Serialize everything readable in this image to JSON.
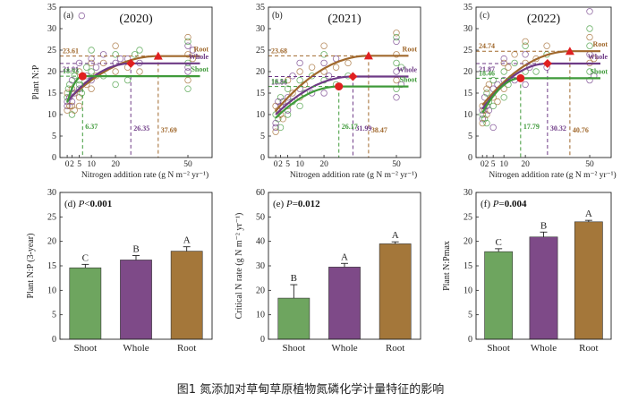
{
  "caption": "图1 氮添加对草甸草原植物氮磷化学计量特征的影响",
  "colors": {
    "root": "#a0682c",
    "whole": "#6e3a86",
    "shoot": "#3f9a3a",
    "marker": "#e02020",
    "bar_shoot": "#6ea55f",
    "bar_whole": "#7e4a88",
    "bar_root": "#a4773a"
  },
  "chart_data": [
    {
      "type": "scatter",
      "panel": "(a)",
      "title": "(2020)",
      "ylabel": "Plant N:P",
      "xlabel": "Nitrogen addition rate (g N m⁻² yr⁻¹)",
      "xticks": [
        0,
        2,
        5,
        10,
        20,
        50
      ],
      "xtick_labels": [
        "0",
        "2",
        "5",
        "10",
        "20",
        "50"
      ],
      "xlim": [
        -3,
        60
      ],
      "yticks": [
        0,
        5,
        10,
        15,
        20,
        25,
        30,
        35
      ],
      "ylim": [
        0,
        35
      ],
      "series": [
        {
          "name": "Root",
          "start": 13.2,
          "plateau": 23.61,
          "xcrit": 37.69,
          "plateau_label": "23.61",
          "xcrit_label": "37.69"
        },
        {
          "name": "Whole",
          "start": 13.0,
          "plateau": 21.91,
          "xcrit": 26.35,
          "plateau_label": "21.91",
          "xcrit_label": "26.35"
        },
        {
          "name": "Shoot",
          "start": 12.8,
          "plateau": 18.93,
          "xcrit": 6.37,
          "plateau_label": "18.93",
          "xcrit_label": "6.37"
        }
      ],
      "scatter_points": [
        [
          0,
          11
        ],
        [
          0,
          13
        ],
        [
          0,
          14
        ],
        [
          0,
          15
        ],
        [
          0,
          12
        ],
        [
          0.5,
          16
        ],
        [
          1,
          12
        ],
        [
          1,
          14
        ],
        [
          1,
          17
        ],
        [
          2,
          12
        ],
        [
          2,
          13
        ],
        [
          2,
          15
        ],
        [
          2,
          16
        ],
        [
          2,
          18
        ],
        [
          2,
          10
        ],
        [
          3,
          11
        ],
        [
          3,
          15
        ],
        [
          3,
          19
        ],
        [
          5,
          14
        ],
        [
          5,
          16
        ],
        [
          5,
          18
        ],
        [
          5,
          20
        ],
        [
          5,
          22
        ],
        [
          5,
          17
        ],
        [
          5,
          12
        ],
        [
          6,
          33
        ],
        [
          6,
          15
        ],
        [
          8,
          17
        ],
        [
          8,
          19
        ],
        [
          8,
          21
        ],
        [
          10,
          16
        ],
        [
          10,
          18
        ],
        [
          10,
          20
        ],
        [
          10,
          22
        ],
        [
          10,
          23
        ],
        [
          10,
          25
        ],
        [
          12,
          19
        ],
        [
          12,
          21
        ],
        [
          15,
          19
        ],
        [
          15,
          22
        ],
        [
          15,
          24
        ],
        [
          20,
          17
        ],
        [
          20,
          20
        ],
        [
          20,
          22
        ],
        [
          20,
          24
        ],
        [
          20,
          26
        ],
        [
          22,
          23
        ],
        [
          25,
          18
        ],
        [
          25,
          21
        ],
        [
          25,
          23
        ],
        [
          28,
          24
        ],
        [
          30,
          20
        ],
        [
          30,
          22
        ],
        [
          30,
          25
        ],
        [
          50,
          18
        ],
        [
          50,
          20
        ],
        [
          50,
          22
        ],
        [
          50,
          24
        ],
        [
          50,
          26
        ],
        [
          50,
          27
        ],
        [
          50,
          28
        ],
        [
          50,
          21
        ],
        [
          50,
          16
        ],
        [
          52,
          23
        ],
        [
          52,
          25
        ]
      ]
    },
    {
      "type": "scatter",
      "panel": "(b)",
      "title": "(2021)",
      "ylabel": "",
      "xlabel": "Nitrogen addition rate (g N m⁻² yr⁻¹)",
      "xticks": [
        0,
        2,
        5,
        10,
        20,
        50
      ],
      "xtick_labels": [
        "0",
        "2",
        "5",
        "10",
        "20",
        "50"
      ],
      "xlim": [
        -3,
        60
      ],
      "yticks": [
        0,
        5,
        10,
        15,
        20,
        25,
        30,
        35
      ],
      "ylim": [
        0,
        35
      ],
      "series": [
        {
          "name": "Root",
          "start": 10.8,
          "plateau": 23.68,
          "xcrit": 38.47,
          "plateau_label": "23.68",
          "xcrit_label": "38.47"
        },
        {
          "name": "Whole",
          "start": 10.0,
          "plateau": 18.86,
          "xcrit": 31.99,
          "plateau_label": "18.86",
          "xcrit_label": "31.99"
        },
        {
          "name": "Shoot",
          "start": 9.2,
          "plateau": 16.54,
          "xcrit": 26.17,
          "plateau_label": "16.54",
          "xcrit_label": "26.17"
        }
      ],
      "scatter_points": [
        [
          0,
          6
        ],
        [
          0,
          8
        ],
        [
          0,
          10
        ],
        [
          0,
          12
        ],
        [
          0,
          7
        ],
        [
          1,
          9
        ],
        [
          1,
          11
        ],
        [
          1,
          13
        ],
        [
          2,
          7
        ],
        [
          2,
          10
        ],
        [
          2,
          12
        ],
        [
          2,
          14
        ],
        [
          3,
          9
        ],
        [
          3,
          13
        ],
        [
          5,
          10
        ],
        [
          5,
          12
        ],
        [
          5,
          14
        ],
        [
          5,
          16
        ],
        [
          5,
          18
        ],
        [
          5,
          11
        ],
        [
          7,
          13
        ],
        [
          7,
          15
        ],
        [
          7,
          19
        ],
        [
          10,
          12
        ],
        [
          10,
          14
        ],
        [
          10,
          16
        ],
        [
          10,
          18
        ],
        [
          10,
          20
        ],
        [
          10,
          22
        ],
        [
          12,
          15
        ],
        [
          12,
          17
        ],
        [
          15,
          15
        ],
        [
          15,
          19
        ],
        [
          15,
          21
        ],
        [
          20,
          15
        ],
        [
          20,
          18
        ],
        [
          20,
          20
        ],
        [
          20,
          22
        ],
        [
          20,
          24
        ],
        [
          20,
          26
        ],
        [
          22,
          19
        ],
        [
          25,
          17
        ],
        [
          25,
          21
        ],
        [
          25,
          23
        ],
        [
          30,
          19
        ],
        [
          30,
          22
        ],
        [
          50,
          14
        ],
        [
          50,
          16
        ],
        [
          50,
          18
        ],
        [
          50,
          20
        ],
        [
          50,
          22
        ],
        [
          50,
          24
        ],
        [
          50,
          27
        ],
        [
          50,
          28
        ],
        [
          50,
          29
        ],
        [
          52,
          17
        ],
        [
          52,
          21
        ]
      ]
    },
    {
      "type": "scatter",
      "panel": "(c)",
      "title": "(2022)",
      "ylabel": "",
      "xlabel": "Nitrogen addition rate (g N m⁻² yr⁻¹)",
      "xticks": [
        0,
        2,
        5,
        10,
        20,
        50
      ],
      "xtick_labels": [
        "0",
        "2",
        "5",
        "10",
        "20",
        "50"
      ],
      "xlim": [
        -3,
        60
      ],
      "yticks": [
        0,
        5,
        10,
        15,
        20,
        25,
        30,
        35
      ],
      "ylim": [
        0,
        35
      ],
      "series": [
        {
          "name": "Root",
          "start": 12.2,
          "plateau": 24.74,
          "xcrit": 40.76,
          "plateau_label": "24.74",
          "xcrit_label": "40.76"
        },
        {
          "name": "Whole",
          "start": 11.3,
          "plateau": 21.87,
          "xcrit": 30.32,
          "plateau_label": "21.87",
          "xcrit_label": "30.32"
        },
        {
          "name": "Shoot",
          "start": 10.4,
          "plateau": 18.46,
          "xcrit": 17.79,
          "plateau_label": "18.46",
          "xcrit_label": "17.79"
        }
      ],
      "scatter_points": [
        [
          0,
          8
        ],
        [
          0,
          9
        ],
        [
          0,
          10
        ],
        [
          0,
          12
        ],
        [
          0,
          11
        ],
        [
          1,
          9
        ],
        [
          1,
          11
        ],
        [
          1,
          14
        ],
        [
          2,
          8
        ],
        [
          2,
          10
        ],
        [
          2,
          12
        ],
        [
          2,
          15
        ],
        [
          2,
          16
        ],
        [
          3,
          11
        ],
        [
          3,
          13
        ],
        [
          3,
          17
        ],
        [
          5,
          7
        ],
        [
          5,
          12
        ],
        [
          5,
          14
        ],
        [
          5,
          16
        ],
        [
          5,
          18
        ],
        [
          7,
          13
        ],
        [
          7,
          17
        ],
        [
          10,
          14
        ],
        [
          10,
          16
        ],
        [
          10,
          18
        ],
        [
          10,
          20
        ],
        [
          10,
          22
        ],
        [
          10,
          23
        ],
        [
          12,
          17
        ],
        [
          12,
          21
        ],
        [
          15,
          18
        ],
        [
          15,
          22
        ],
        [
          15,
          24
        ],
        [
          20,
          17
        ],
        [
          20,
          20
        ],
        [
          20,
          22
        ],
        [
          20,
          24
        ],
        [
          20,
          26
        ],
        [
          20,
          27
        ],
        [
          22,
          21
        ],
        [
          25,
          20
        ],
        [
          25,
          23
        ],
        [
          30,
          21
        ],
        [
          30,
          24
        ],
        [
          30,
          26
        ],
        [
          50,
          18
        ],
        [
          50,
          20
        ],
        [
          50,
          22
        ],
        [
          50,
          24
        ],
        [
          50,
          26
        ],
        [
          50,
          28
        ],
        [
          50,
          34
        ],
        [
          50,
          30
        ],
        [
          52,
          23
        ],
        [
          52,
          19
        ]
      ]
    },
    {
      "type": "bar",
      "panel": "(d)",
      "p_prefix": "P<",
      "p_value": "0.001",
      "ylabel": "Plant N:P (3-year)",
      "categories": [
        "Shoot",
        "Whole",
        "Root"
      ],
      "values": [
        14.6,
        16.2,
        18.0
      ],
      "errors": [
        0.7,
        0.9,
        0.9
      ],
      "letters": [
        "C",
        "B",
        "A"
      ],
      "yticks": [
        0,
        5,
        10,
        15,
        20,
        25,
        30
      ],
      "ylim": [
        0,
        30
      ]
    },
    {
      "type": "bar",
      "panel": "(e)",
      "p_prefix": "P=",
      "p_value": "0.012",
      "ylabel": "Critical N rate (g N m⁻² yr⁻¹)",
      "categories": [
        "Shoot",
        "Whole",
        "Root"
      ],
      "values": [
        16.8,
        29.5,
        39.0
      ],
      "errors": [
        5.5,
        1.5,
        0.8
      ],
      "letters": [
        "B",
        "A",
        "A"
      ],
      "yticks": [
        0,
        10,
        20,
        30,
        40,
        50,
        60
      ],
      "ylim": [
        0,
        60
      ]
    },
    {
      "type": "bar",
      "panel": "(f)",
      "p_prefix": "P=",
      "p_value": "0.004",
      "ylabel": "Plant N:Pmax",
      "categories": [
        "Shoot",
        "Whole",
        "Root"
      ],
      "values": [
        17.9,
        20.9,
        24.0
      ],
      "errors": [
        0.6,
        1.0,
        0.3
      ],
      "letters": [
        "C",
        "B",
        "A"
      ],
      "yticks": [
        0,
        5,
        10,
        15,
        20,
        25,
        30
      ],
      "ylim": [
        0,
        30
      ]
    }
  ]
}
